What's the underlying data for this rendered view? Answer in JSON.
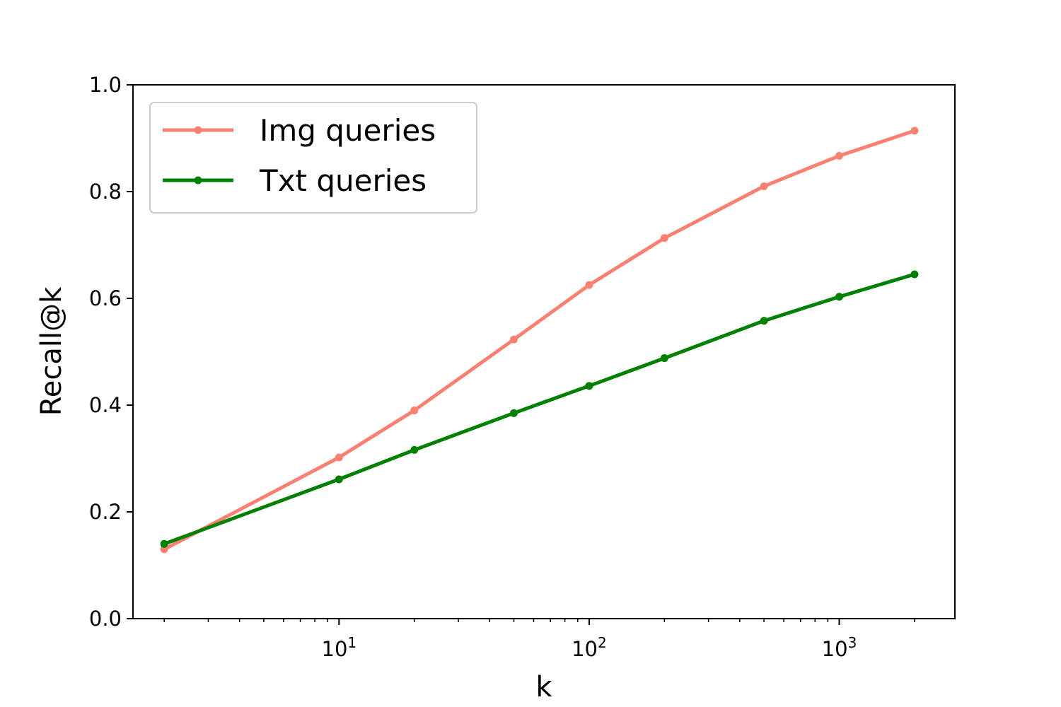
{
  "chart_data": {
    "type": "line",
    "xscale": "log",
    "xlabel": "k",
    "ylabel": "Recall@k",
    "xlim": [
      1.5,
      2900
    ],
    "ylim": [
      0,
      1.0
    ],
    "grid": false,
    "legend_position": "top-left",
    "x": [
      2,
      10,
      20,
      50,
      100,
      200,
      500,
      1000,
      2000
    ],
    "series": [
      {
        "name": "Img queries",
        "color": "#fa8072",
        "values": [
          0.13,
          0.302,
          0.39,
          0.523,
          0.625,
          0.713,
          0.81,
          0.867,
          0.914
        ]
      },
      {
        "name": "Txt queries",
        "color": "#008000",
        "values": [
          0.14,
          0.261,
          0.316,
          0.385,
          0.436,
          0.488,
          0.558,
          0.603,
          0.645
        ]
      }
    ],
    "y_ticks": [
      "0.0",
      "0.2",
      "0.4",
      "0.6",
      "0.8",
      "1.0"
    ],
    "x_ticks": [
      {
        "value": 10,
        "base": "10",
        "exp": "1"
      },
      {
        "value": 100,
        "base": "10",
        "exp": "2"
      },
      {
        "value": 1000,
        "base": "10",
        "exp": "3"
      }
    ]
  }
}
